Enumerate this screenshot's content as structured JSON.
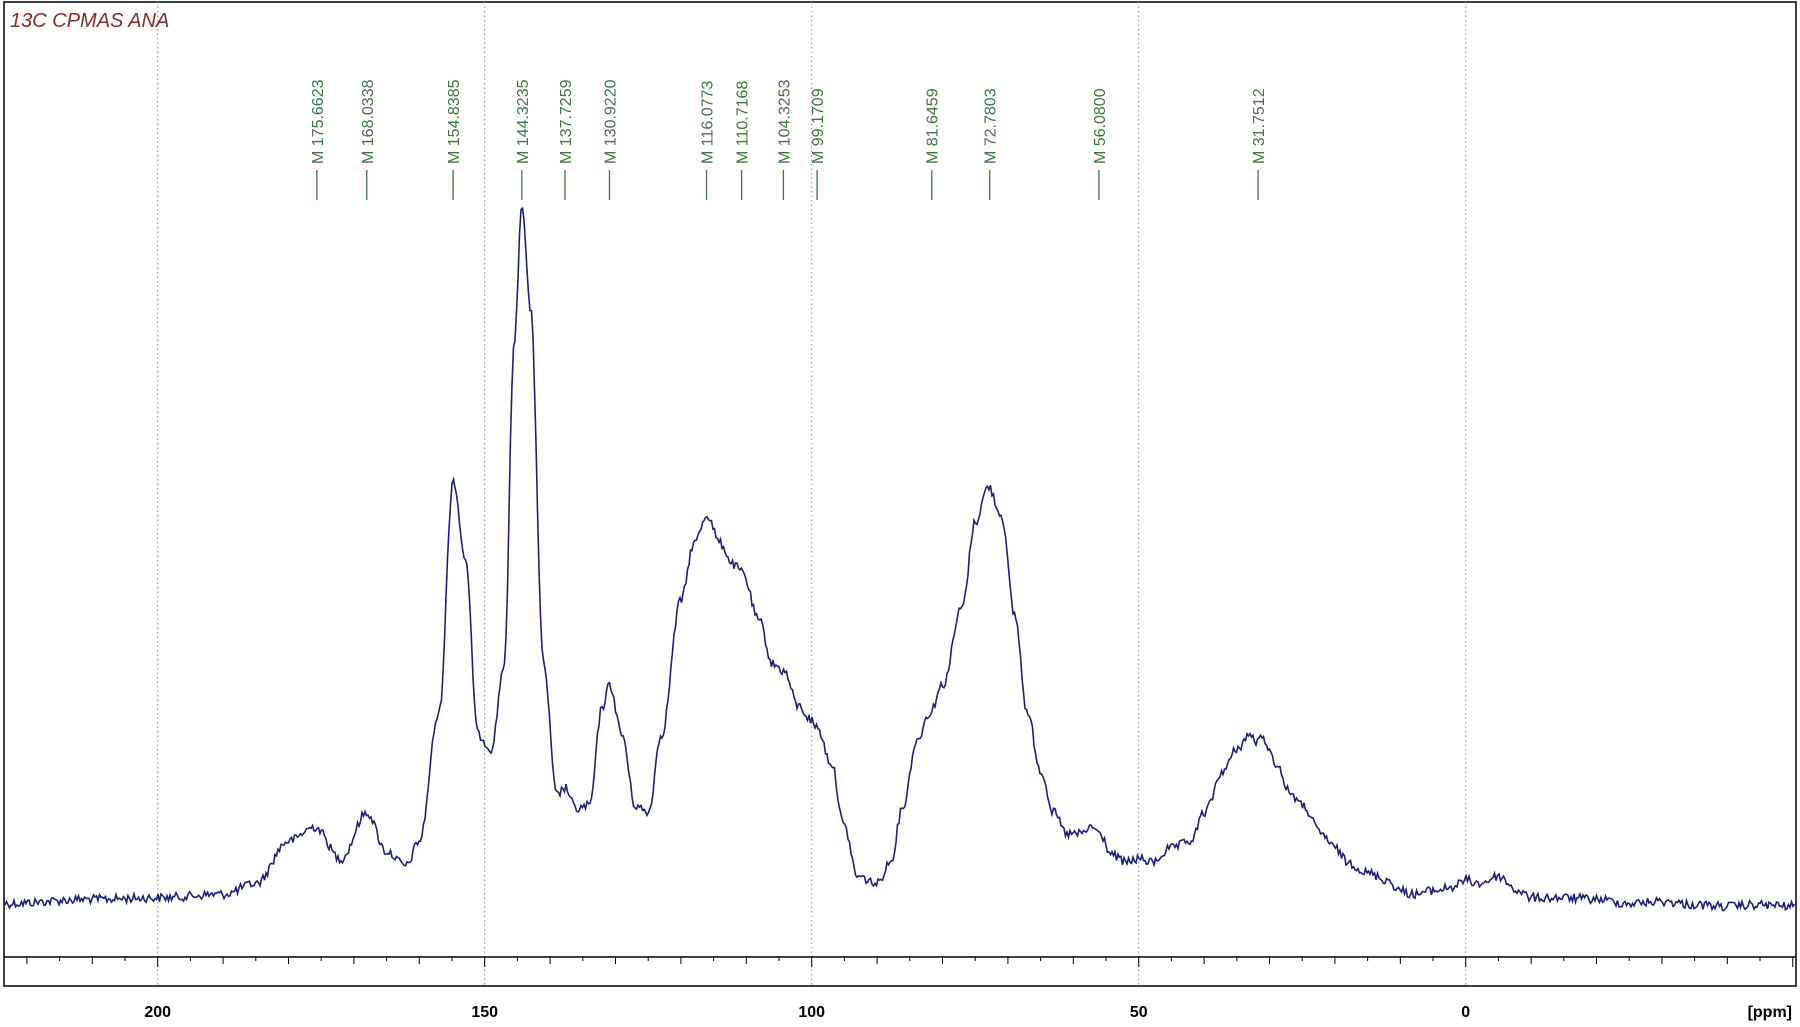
{
  "colors": {
    "spectrum": "#1f1f7a",
    "markers": "#3a7a3a",
    "title": "#8a2a2a",
    "grid": "#8a8a8a",
    "axis": "#000000"
  },
  "chart_data": {
    "type": "line",
    "title": "13C CPMAS ANA",
    "xlabel": "",
    "ylabel": "",
    "axis_unit": "[ppm]",
    "xlim": [
      223.5,
      -50.5
    ],
    "x_reversed": true,
    "ylim": [
      0,
      1
    ],
    "grid": "vertical-dotted",
    "ticks": [
      200,
      150,
      100,
      50,
      0
    ],
    "tick_labels": [
      "200",
      "150",
      "100",
      "50",
      "0"
    ],
    "markers": [
      {
        "x": 175.6623,
        "label": "M 175.6623"
      },
      {
        "x": 168.0338,
        "label": "M 168.0338"
      },
      {
        "x": 154.8385,
        "label": "M 154.8385"
      },
      {
        "x": 144.3235,
        "label": "M 144.3235"
      },
      {
        "x": 137.7259,
        "label": "M 137.7259"
      },
      {
        "x": 130.922,
        "label": "M 130.9220"
      },
      {
        "x": 116.0773,
        "label": "M 116.0773"
      },
      {
        "x": 110.7168,
        "label": "M 110.7168"
      },
      {
        "x": 104.3253,
        "label": "M 104.3253"
      },
      {
        "x": 99.1709,
        "label": "M 99.1709"
      },
      {
        "x": 81.6459,
        "label": "M 81.6459"
      },
      {
        "x": 72.7803,
        "label": "M 72.7803"
      },
      {
        "x": 56.08,
        "label": "M 56.0800"
      },
      {
        "x": 31.7512,
        "label": "M 31.7512"
      }
    ],
    "series": [
      {
        "x": [
          223.5,
          210,
          200,
          190,
          185,
          180,
          176,
          172,
          168,
          165,
          162,
          160,
          157,
          154.8,
          153,
          151,
          149,
          147,
          145.5,
          144.3,
          143,
          141,
          139,
          137.7,
          136,
          134,
          132,
          130.9,
          129,
          127,
          125,
          123,
          120,
          118,
          116,
          114,
          112,
          110.7,
          108,
          106,
          104.3,
          102,
          100,
          99.2,
          97,
          95,
          93,
          90,
          88,
          86,
          84,
          82,
          80,
          77,
          75,
          73,
          71,
          69,
          67,
          65,
          63,
          61,
          59,
          57,
          56,
          54,
          52,
          50,
          48,
          45,
          42,
          40,
          37,
          35,
          33,
          32,
          31,
          29,
          27,
          25,
          22,
          20,
          18,
          15,
          12,
          10,
          8,
          5,
          2,
          0,
          -2,
          -5,
          -8,
          -10,
          -15,
          -20,
          -25,
          -30,
          -35,
          -40,
          -45,
          -50.5
        ],
        "y": [
          0.012,
          0.018,
          0.02,
          0.025,
          0.04,
          0.1,
          0.12,
          0.075,
          0.14,
          0.085,
          0.065,
          0.1,
          0.28,
          0.61,
          0.5,
          0.25,
          0.23,
          0.35,
          0.8,
          1.0,
          0.85,
          0.35,
          0.165,
          0.175,
          0.145,
          0.15,
          0.29,
          0.32,
          0.25,
          0.15,
          0.14,
          0.25,
          0.44,
          0.52,
          0.56,
          0.52,
          0.49,
          0.48,
          0.41,
          0.35,
          0.34,
          0.29,
          0.27,
          0.26,
          0.21,
          0.12,
          0.05,
          0.04,
          0.07,
          0.15,
          0.24,
          0.28,
          0.32,
          0.43,
          0.55,
          0.6,
          0.56,
          0.42,
          0.28,
          0.2,
          0.14,
          0.11,
          0.11,
          0.12,
          0.11,
          0.08,
          0.07,
          0.075,
          0.07,
          0.09,
          0.1,
          0.14,
          0.2,
          0.23,
          0.25,
          0.24,
          0.245,
          0.21,
          0.17,
          0.15,
          0.11,
          0.09,
          0.07,
          0.055,
          0.045,
          0.03,
          0.025,
          0.03,
          0.035,
          0.045,
          0.04,
          0.05,
          0.03,
          0.02,
          0.02,
          0.018,
          0.012,
          0.015,
          0.01,
          0.008,
          0.01,
          0.008
        ]
      }
    ]
  }
}
